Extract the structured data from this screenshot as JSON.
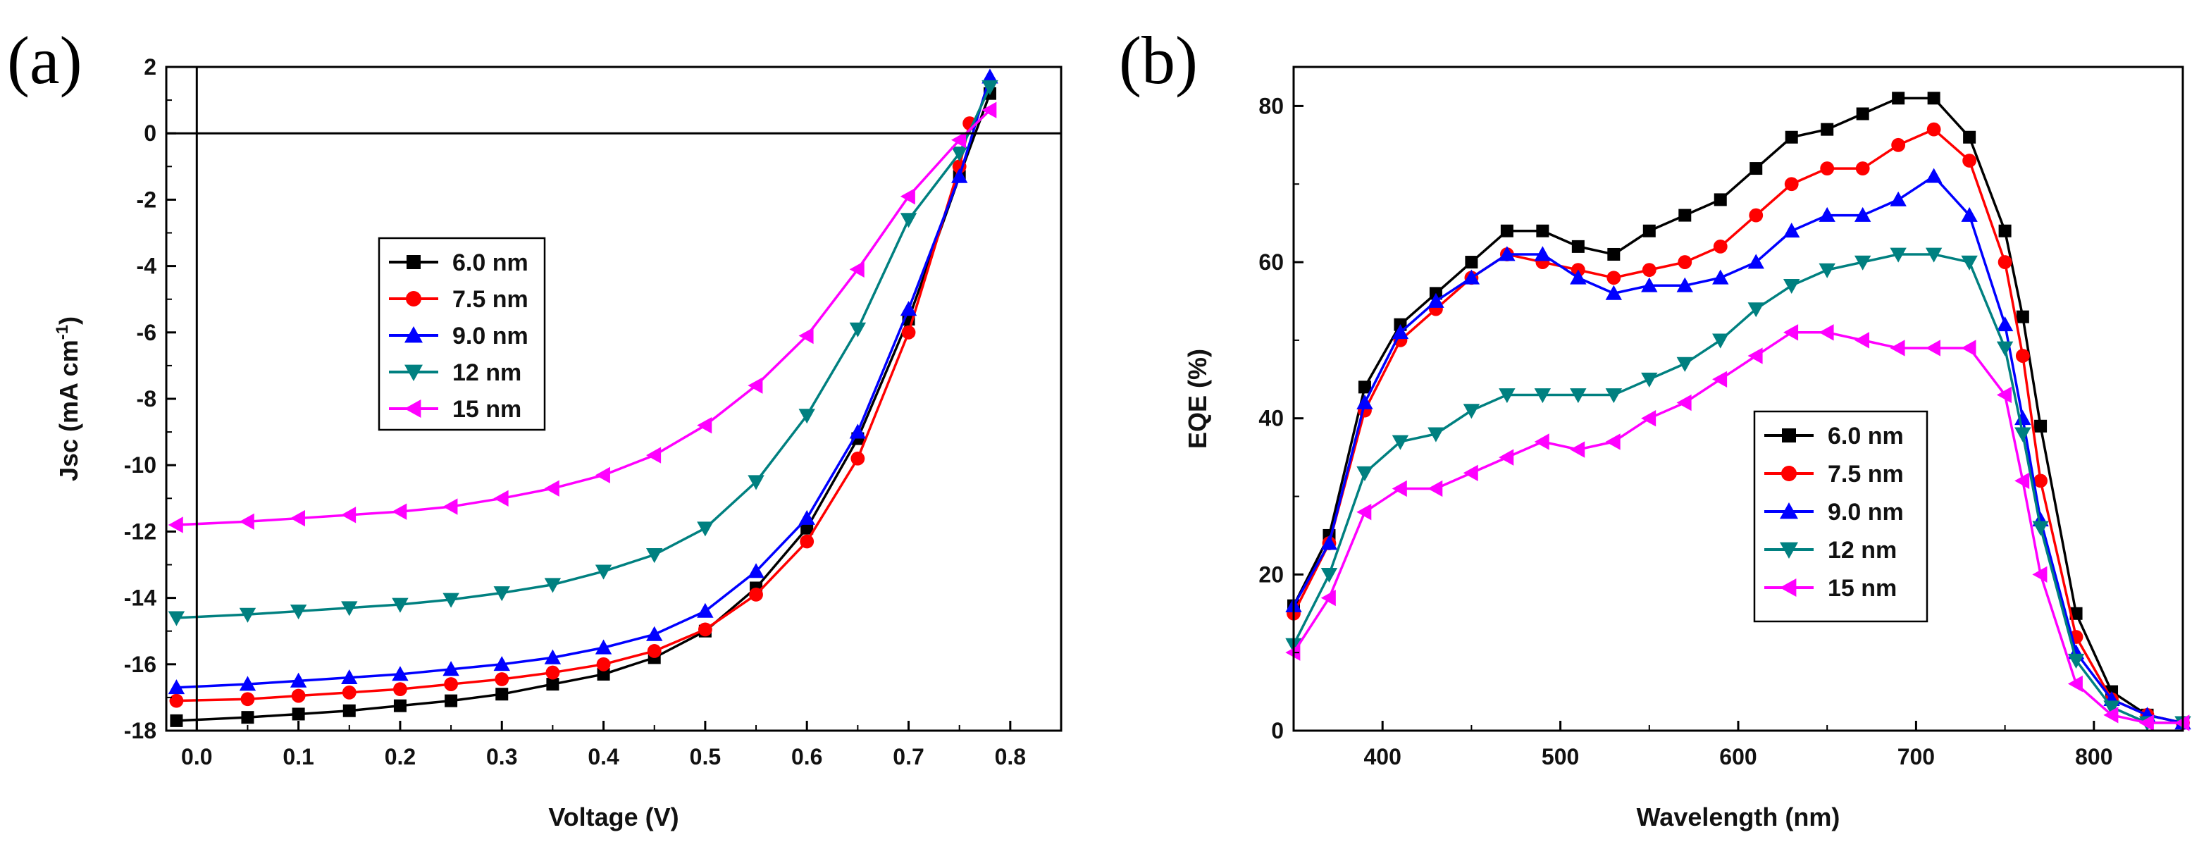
{
  "chart_data": [
    {
      "panel": "(a)",
      "type": "line",
      "title": "",
      "xlabel": "Voltage (V)",
      "ylabel_main": "Jsc (mA cm",
      "ylabel_sup": "-1",
      "ylabel_close": ")",
      "xlim": [
        -0.03,
        0.85
      ],
      "ylim": [
        -18,
        2
      ],
      "xticks": [
        0.0,
        0.1,
        0.2,
        0.3,
        0.4,
        0.5,
        0.6,
        0.7,
        0.8
      ],
      "xtick_labels": [
        "0.0",
        "0.1",
        "0.2",
        "0.3",
        "0.4",
        "0.5",
        "0.6",
        "0.7",
        "0.8"
      ],
      "yticks": [
        -18,
        -16,
        -14,
        -12,
        -10,
        -8,
        -6,
        -4,
        -2,
        0,
        2
      ],
      "ytick_labels": [
        "-18",
        "-16",
        "-14",
        "-12",
        "-10",
        "-8",
        "-6",
        "-4",
        "-2",
        "0",
        "2"
      ],
      "reference_lines": {
        "x": 0,
        "y": 0
      },
      "legend": "center-left",
      "series": [
        {
          "name": "6.0 nm",
          "color": "#000000",
          "marker": "square",
          "x": [
            -0.02,
            0.05,
            0.1,
            0.15,
            0.2,
            0.25,
            0.3,
            0.35,
            0.4,
            0.45,
            0.5,
            0.55,
            0.6,
            0.65,
            0.7,
            0.75,
            0.78
          ],
          "y": [
            -17.7,
            -17.6,
            -17.5,
            -17.4,
            -17.25,
            -17.1,
            -16.9,
            -16.6,
            -16.3,
            -15.8,
            -15.0,
            -13.7,
            -11.9,
            -9.2,
            -5.6,
            -1.3,
            1.2
          ]
        },
        {
          "name": "7.5 nm",
          "color": "#ff0000",
          "marker": "circle",
          "x": [
            -0.02,
            0.05,
            0.1,
            0.15,
            0.2,
            0.25,
            0.3,
            0.35,
            0.4,
            0.45,
            0.5,
            0.55,
            0.6,
            0.65,
            0.7,
            0.75,
            0.76
          ],
          "y": [
            -17.1,
            -17.05,
            -16.95,
            -16.85,
            -16.75,
            -16.6,
            -16.45,
            -16.25,
            -16.0,
            -15.6,
            -14.95,
            -13.9,
            -12.3,
            -9.8,
            -6.0,
            -1.0,
            0.3
          ]
        },
        {
          "name": "9.0 nm",
          "color": "#0000ff",
          "marker": "triangle-up",
          "x": [
            -0.02,
            0.05,
            0.1,
            0.15,
            0.2,
            0.25,
            0.3,
            0.35,
            0.4,
            0.45,
            0.5,
            0.55,
            0.6,
            0.65,
            0.7,
            0.75,
            0.78
          ],
          "y": [
            -16.7,
            -16.6,
            -16.5,
            -16.4,
            -16.3,
            -16.15,
            -16.0,
            -15.8,
            -15.5,
            -15.1,
            -14.4,
            -13.2,
            -11.6,
            -9.0,
            -5.3,
            -1.3,
            1.7
          ]
        },
        {
          "name": "12 nm",
          "color": "#008080",
          "marker": "triangle-down",
          "x": [
            -0.02,
            0.05,
            0.1,
            0.15,
            0.2,
            0.25,
            0.3,
            0.35,
            0.4,
            0.45,
            0.5,
            0.55,
            0.6,
            0.65,
            0.7,
            0.75,
            0.78
          ],
          "y": [
            -14.6,
            -14.5,
            -14.4,
            -14.3,
            -14.2,
            -14.05,
            -13.85,
            -13.6,
            -13.2,
            -12.7,
            -11.9,
            -10.5,
            -8.5,
            -5.9,
            -2.6,
            -0.6,
            1.4
          ]
        },
        {
          "name": "15 nm",
          "color": "#ff00ff",
          "marker": "triangle-left",
          "x": [
            -0.02,
            0.05,
            0.1,
            0.15,
            0.2,
            0.25,
            0.3,
            0.35,
            0.4,
            0.45,
            0.5,
            0.55,
            0.6,
            0.65,
            0.7,
            0.75,
            0.78
          ],
          "y": [
            -11.8,
            -11.7,
            -11.6,
            -11.5,
            -11.4,
            -11.25,
            -11.0,
            -10.7,
            -10.3,
            -9.7,
            -8.8,
            -7.6,
            -6.1,
            -4.1,
            -1.9,
            -0.2,
            0.7
          ]
        }
      ]
    },
    {
      "panel": "(b)",
      "type": "line",
      "title": "",
      "xlabel": "Wavelength (nm)",
      "ylabel": "EQE (%)",
      "xlim": [
        350,
        850
      ],
      "ylim": [
        0,
        85
      ],
      "xticks": [
        400,
        500,
        600,
        700,
        800
      ],
      "xtick_labels": [
        "400",
        "500",
        "600",
        "700",
        "800"
      ],
      "yticks": [
        0,
        20,
        40,
        60,
        80
      ],
      "ytick_labels": [
        "0",
        "20",
        "40",
        "60",
        "80"
      ],
      "legend": "bottom-center",
      "series": [
        {
          "name": "6.0 nm",
          "color": "#000000",
          "marker": "square",
          "x": [
            350,
            370,
            390,
            410,
            430,
            450,
            470,
            490,
            510,
            530,
            550,
            570,
            590,
            610,
            630,
            650,
            670,
            690,
            710,
            730,
            750,
            760,
            770,
            790,
            810,
            830,
            850
          ],
          "y": [
            16,
            25,
            44,
            52,
            56,
            60,
            64,
            64,
            62,
            61,
            64,
            66,
            68,
            72,
            76,
            77,
            79,
            81,
            81,
            76,
            64,
            53,
            39,
            15,
            5,
            2,
            1
          ]
        },
        {
          "name": "7.5 nm",
          "color": "#ff0000",
          "marker": "circle",
          "x": [
            350,
            370,
            390,
            410,
            430,
            450,
            470,
            490,
            510,
            530,
            550,
            570,
            590,
            610,
            630,
            650,
            670,
            690,
            710,
            730,
            750,
            760,
            770,
            790,
            810,
            830,
            850
          ],
          "y": [
            15,
            24,
            41,
            50,
            54,
            58,
            61,
            60,
            59,
            58,
            59,
            60,
            62,
            66,
            70,
            72,
            72,
            75,
            77,
            73,
            60,
            48,
            32,
            12,
            4,
            2,
            1
          ]
        },
        {
          "name": "9.0 nm",
          "color": "#0000ff",
          "marker": "triangle-up",
          "x": [
            350,
            370,
            390,
            410,
            430,
            450,
            470,
            490,
            510,
            530,
            550,
            570,
            590,
            610,
            630,
            650,
            670,
            690,
            710,
            730,
            750,
            760,
            770,
            790,
            810,
            830,
            850
          ],
          "y": [
            16,
            24,
            42,
            51,
            55,
            58,
            61,
            61,
            58,
            56,
            57,
            57,
            58,
            60,
            64,
            66,
            66,
            68,
            71,
            66,
            52,
            40,
            27,
            10,
            4,
            2,
            1
          ]
        },
        {
          "name": "12 nm",
          "color": "#008080",
          "marker": "triangle-down",
          "x": [
            350,
            370,
            390,
            410,
            430,
            450,
            470,
            490,
            510,
            530,
            550,
            570,
            590,
            610,
            630,
            650,
            670,
            690,
            710,
            730,
            750,
            760,
            770,
            790,
            810,
            830,
            850
          ],
          "y": [
            11,
            20,
            33,
            37,
            38,
            41,
            43,
            43,
            43,
            43,
            45,
            47,
            50,
            54,
            57,
            59,
            60,
            61,
            61,
            60,
            49,
            38,
            26,
            9,
            3,
            1,
            1
          ]
        },
        {
          "name": "15 nm",
          "color": "#ff00ff",
          "marker": "triangle-left",
          "x": [
            350,
            370,
            390,
            410,
            430,
            450,
            470,
            490,
            510,
            530,
            550,
            570,
            590,
            610,
            630,
            650,
            670,
            690,
            710,
            730,
            750,
            760,
            770,
            790,
            810,
            830,
            850
          ],
          "y": [
            10,
            17,
            28,
            31,
            31,
            33,
            35,
            37,
            36,
            37,
            40,
            42,
            45,
            48,
            51,
            51,
            50,
            49,
            49,
            49,
            43,
            32,
            20,
            6,
            2,
            1,
            1
          ]
        }
      ]
    }
  ]
}
